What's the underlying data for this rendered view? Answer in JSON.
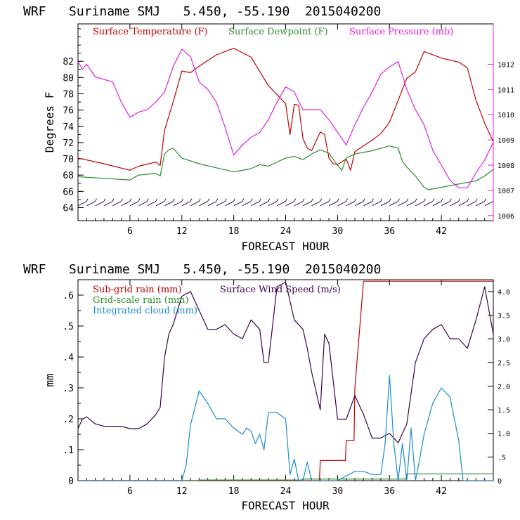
{
  "header": "WRF   Suriname SMJ   5.450, -55.190  2015040200",
  "colors": {
    "temp": "#c00000",
    "dewpoint": "#2e8b2e",
    "pressure": "#e020e0",
    "wind": "#3a0050",
    "subgrid": "#c00000",
    "gridscale": "#2e8b2e",
    "cloud": "#1a8ad4",
    "barb": "#3a0050"
  },
  "chart_data": [
    {
      "type": "line",
      "title": "WRF   Suriname SMJ   5.450, -55.190  2015040200",
      "xlabel": "FORECAST HOUR",
      "ylabel": "Degrees F",
      "y2label": "Surface Pressure (mb)",
      "xlim": [
        0,
        48
      ],
      "ylim": [
        62.4,
        86.6
      ],
      "y2lim": [
        1005.8,
        1013.6
      ],
      "xticks": [
        6,
        12,
        18,
        24,
        30,
        36,
        42
      ],
      "yticks": [
        64,
        66,
        68,
        70,
        72,
        74,
        76,
        78,
        80,
        82
      ],
      "y2ticks": [
        1006,
        1007,
        1008,
        1009,
        1010,
        1011,
        1012
      ],
      "legend": [
        "Surface Temperature (F)",
        "Surface Dewpoint (F)",
        "Surface Pressure (mb)"
      ],
      "wind_barbs_y": 64.5,
      "series": [
        {
          "name": "Surface Temperature (F)",
          "axis": "left",
          "x": [
            0,
            3,
            6,
            7,
            9,
            9.5,
            10,
            11,
            12,
            13,
            14,
            16,
            18,
            20,
            22,
            24,
            24.5,
            25,
            25.5,
            26,
            26.5,
            27,
            28,
            28.5,
            29,
            29.5,
            30,
            31,
            31.5,
            32,
            33,
            34,
            35,
            36,
            37,
            38,
            39,
            40,
            42,
            44,
            45,
            46,
            47,
            48
          ],
          "y": [
            70.1,
            69.4,
            68.6,
            69.1,
            69.6,
            69.2,
            73.5,
            77.0,
            80.8,
            80.6,
            81.4,
            82.8,
            83.6,
            82.5,
            79.0,
            76.8,
            73.0,
            76.7,
            76.6,
            72.5,
            71.3,
            71.0,
            73.3,
            73.0,
            70.1,
            69.4,
            69.3,
            70.0,
            68.6,
            70.9,
            71.6,
            72.3,
            73.1,
            74.5,
            77.2,
            79.9,
            80.7,
            83.2,
            82.4,
            81.9,
            81.2,
            77.2,
            74.4,
            72.1
          ]
        },
        {
          "name": "Surface Dewpoint (F)",
          "axis": "left",
          "x": [
            0,
            3,
            6,
            7,
            8,
            9,
            9.5,
            10,
            10.5,
            11,
            12,
            14,
            16,
            18,
            20,
            21,
            22,
            24,
            25,
            26,
            27,
            28,
            29,
            30,
            30.5,
            31,
            32,
            34,
            36,
            37,
            37.5,
            38,
            39,
            40,
            40.5,
            42,
            44,
            46,
            47,
            48
          ],
          "y": [
            67.8,
            67.6,
            67.4,
            68.0,
            68.1,
            68.2,
            67.9,
            70.6,
            71.1,
            71.3,
            70.1,
            69.4,
            68.9,
            68.4,
            68.8,
            69.3,
            69.1,
            70.1,
            70.3,
            69.9,
            70.6,
            71.1,
            70.7,
            69.2,
            68.6,
            70.1,
            70.6,
            71.0,
            71.6,
            71.3,
            69.7,
            69.0,
            67.9,
            66.5,
            66.2,
            66.5,
            66.9,
            67.3,
            67.9,
            68.7
          ]
        },
        {
          "name": "Surface Pressure (mb)",
          "axis": "right",
          "x": [
            0,
            0.5,
            1,
            2,
            3,
            4,
            5,
            6,
            7,
            8,
            9,
            10,
            11,
            12,
            13,
            14,
            15,
            16,
            17,
            18,
            19,
            20,
            21,
            22,
            23,
            24,
            25,
            26,
            27,
            28,
            29,
            30,
            31,
            32,
            33,
            34,
            35,
            36,
            37,
            38,
            39,
            40,
            41,
            42,
            43,
            44,
            45,
            46,
            47,
            48
          ],
          "y": [
            1012.1,
            1011.8,
            1012.0,
            1011.5,
            1011.4,
            1011.3,
            1010.5,
            1009.9,
            1010.1,
            1010.2,
            1010.5,
            1010.9,
            1011.9,
            1012.6,
            1012.3,
            1011.3,
            1011.0,
            1010.5,
            1009.5,
            1008.4,
            1008.8,
            1009.1,
            1009.3,
            1009.8,
            1010.5,
            1011.1,
            1010.9,
            1010.2,
            1010.2,
            1010.2,
            1009.8,
            1009.3,
            1008.8,
            1009.6,
            1010.3,
            1010.9,
            1011.6,
            1011.9,
            1012.1,
            1011.0,
            1010.2,
            1009.6,
            1008.6,
            1008.0,
            1007.4,
            1007.1,
            1007.1,
            1007.7,
            1008.2,
            1008.9
          ]
        }
      ]
    },
    {
      "type": "line",
      "title": "WRF   Suriname SMJ   5.450, -55.190  2015040200",
      "xlabel": "FORECAST HOUR",
      "ylabel": "mm",
      "y2label": "Surface Wind Speed (m/s)",
      "xlim": [
        0,
        48
      ],
      "ylim": [
        0,
        0.65
      ],
      "y2lim": [
        0,
        4.25
      ],
      "xticks": [
        6,
        12,
        18,
        24,
        30,
        36,
        42
      ],
      "yticks": [
        0,
        0.1,
        0.2,
        0.3,
        0.4,
        0.5,
        0.6
      ],
      "yticklabels": [
        "0",
        ".1",
        ".2",
        ".3",
        ".4",
        ".5",
        ".6"
      ],
      "y2ticks": [
        0,
        0.5,
        1.0,
        1.5,
        2.0,
        2.5,
        3.0,
        3.5,
        4.0
      ],
      "y2ticklabels": [
        "0",
        ".5",
        "1.0",
        "1.5",
        "2.0",
        "2.5",
        "3.0",
        "3.5",
        "4.0"
      ],
      "legend": [
        "Sub-grid rain (mm)",
        "Surface Wind Speed (m/s)",
        "Grid-scale rain (mm)",
        "Integrated cloud (mm)"
      ],
      "series": [
        {
          "name": "Sub-grid rain (mm)",
          "axis": "left",
          "x": [
            0,
            27.9,
            28,
            30.9,
            31,
            31.9,
            32,
            33,
            33.1,
            48
          ],
          "y": [
            0,
            0,
            0.065,
            0.065,
            0.13,
            0.13,
            0.3,
            0.645,
            0.645,
            0.645
          ]
        },
        {
          "name": "Surface Wind Speed (m/s)",
          "axis": "right",
          "x": [
            0,
            0.5,
            1,
            2,
            3,
            4,
            5,
            6,
            7,
            8,
            9,
            9.5,
            10,
            10.5,
            11,
            12,
            13,
            14,
            15,
            16,
            17,
            18,
            19,
            20,
            21,
            21.5,
            22,
            23,
            24,
            25,
            26,
            26.5,
            27,
            28,
            28.5,
            29,
            30,
            31,
            32,
            33,
            34,
            35,
            36,
            37,
            38,
            39,
            40,
            41,
            42,
            43,
            44,
            45,
            46,
            47,
            48
          ],
          "y": [
            1.1,
            1.3,
            1.35,
            1.2,
            1.15,
            1.15,
            1.15,
            1.1,
            1.1,
            1.2,
            1.4,
            1.55,
            2.6,
            3.1,
            3.3,
            3.9,
            4.0,
            3.6,
            3.2,
            3.2,
            3.3,
            3.1,
            3.0,
            3.4,
            3.2,
            2.5,
            2.5,
            4.1,
            4.2,
            3.4,
            3.2,
            2.8,
            2.3,
            1.5,
            3.1,
            2.9,
            1.3,
            1.3,
            1.8,
            1.4,
            0.9,
            0.9,
            1.0,
            0.8,
            1.2,
            2.5,
            3.0,
            3.2,
            3.3,
            3.0,
            3.0,
            2.8,
            3.4,
            4.1,
            3.1
          ]
        },
        {
          "name": "Grid-scale rain (mm)",
          "axis": "left",
          "x": [
            0,
            13.9,
            14,
            25.9,
            26,
            37.9,
            38,
            48
          ],
          "y": [
            0,
            0,
            0.002,
            0.002,
            0.005,
            0.005,
            0.022,
            0.022
          ]
        },
        {
          "name": "Integrated cloud (mm)",
          "axis": "left",
          "x": [
            0,
            12,
            12.5,
            13,
            14,
            15,
            16,
            17,
            18,
            19,
            19.5,
            20,
            20.5,
            21,
            21.5,
            22,
            23,
            24,
            24.5,
            25,
            25.5,
            26,
            26.5,
            27,
            28,
            29,
            30,
            31,
            32,
            33,
            34,
            35,
            35.5,
            36,
            36.5,
            37,
            37.5,
            38,
            38.5,
            39,
            39.5,
            40,
            41,
            42,
            43,
            44,
            44.5,
            45,
            46,
            48
          ],
          "y": [
            0,
            0,
            0.05,
            0.18,
            0.29,
            0.25,
            0.2,
            0.2,
            0.17,
            0.15,
            0.17,
            0.16,
            0.12,
            0.15,
            0.1,
            0.22,
            0.22,
            0.2,
            0.02,
            0.07,
            0.0,
            0.0,
            0.06,
            0.0,
            0.0,
            0.0,
            0.0,
            0.015,
            0.03,
            0.03,
            0.02,
            0.02,
            0.12,
            0.34,
            0.12,
            0.0,
            0.12,
            0.0,
            0.17,
            0.0,
            0.07,
            0.15,
            0.25,
            0.3,
            0.27,
            0.13,
            0.0,
            0.0,
            0.0,
            0.0
          ]
        }
      ]
    }
  ]
}
